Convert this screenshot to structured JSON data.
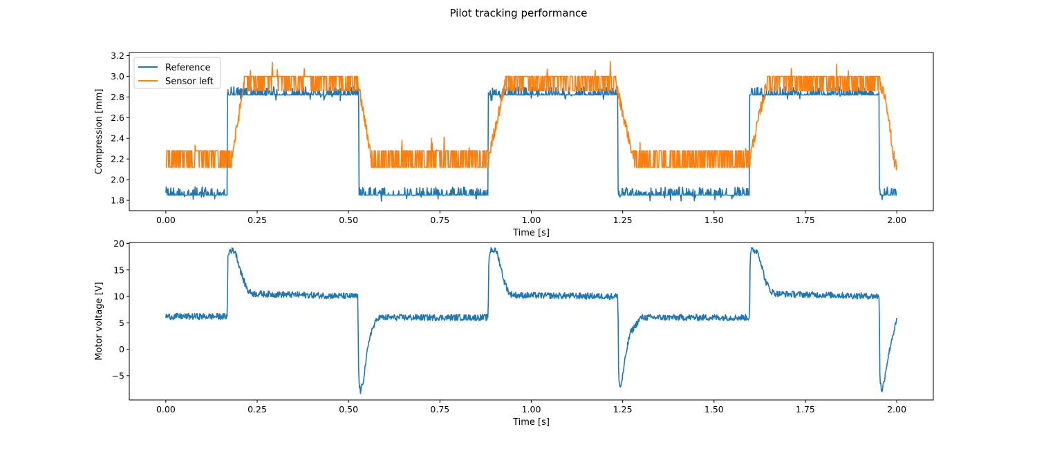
{
  "figure": {
    "title": "Pilot tracking performance"
  },
  "chart_data": [
    {
      "type": "line",
      "title": "",
      "xlabel": "Time [s]",
      "ylabel": "Compression [mm]",
      "xlim": [
        -0.1,
        2.1
      ],
      "ylim": [
        1.7,
        3.23
      ],
      "xticks": [
        0.0,
        0.25,
        0.5,
        0.75,
        1.0,
        1.25,
        1.5,
        1.75,
        2.0
      ],
      "xtick_labels": [
        "0.00",
        "0.25",
        "0.50",
        "0.75",
        "1.00",
        "1.25",
        "1.50",
        "1.75",
        "2.00"
      ],
      "yticks": [
        1.8,
        2.0,
        2.2,
        2.4,
        2.6,
        2.8,
        3.0,
        3.2
      ],
      "ytick_labels": [
        "1.8",
        "2.0",
        "2.2",
        "2.4",
        "2.6",
        "2.8",
        "3.0",
        "3.2"
      ],
      "grid": false,
      "legend": "upper-left",
      "series": [
        {
          "name": "Reference",
          "color": "#1f77b4",
          "x": [
            0.0,
            0.168,
            0.168,
            0.528,
            0.528,
            0.882,
            0.882,
            1.237,
            1.237,
            1.597,
            1.597,
            1.952,
            1.952,
            2.0
          ],
          "y": [
            1.85,
            1.85,
            2.82,
            2.82,
            1.85,
            1.85,
            2.82,
            2.82,
            1.85,
            1.85,
            2.82,
            2.82,
            1.85,
            1.85
          ],
          "noise": "upper-only, base level to +0.08, occasional dips"
        },
        {
          "name": "Sensor left",
          "color": "#ff7f0e",
          "x": [
            0.0,
            0.18,
            0.215,
            0.525,
            0.563,
            0.882,
            0.93,
            1.23,
            1.28,
            1.597,
            1.645,
            1.952,
            1.97,
            1.99,
            2.0
          ],
          "y": [
            2.2,
            2.2,
            2.95,
            2.95,
            2.2,
            2.2,
            2.95,
            2.95,
            2.2,
            2.2,
            2.95,
            2.95,
            2.8,
            2.25,
            2.12
          ],
          "noise": "quantized toggling between 2.12/2.28 on low plateaus and 2.86/3.0 on high plateaus, spikes up to 3.17"
        }
      ]
    },
    {
      "type": "line",
      "title": "",
      "xlabel": "Time [s]",
      "ylabel": "Motor voltage [V]",
      "xlim": [
        -0.1,
        2.1
      ],
      "ylim": [
        -9.6,
        20.2
      ],
      "xticks": [
        0.0,
        0.25,
        0.5,
        0.75,
        1.0,
        1.25,
        1.5,
        1.75,
        2.0
      ],
      "xtick_labels": [
        "0.00",
        "0.25",
        "0.50",
        "0.75",
        "1.00",
        "1.25",
        "1.50",
        "1.75",
        "2.00"
      ],
      "yticks": [
        -5,
        0,
        5,
        10,
        15,
        20
      ],
      "ytick_labels": [
        "−5",
        "0",
        "5",
        "10",
        "15",
        "20"
      ],
      "grid": false,
      "series": [
        {
          "color": "#1f77b4",
          "x": [
            0.0,
            0.168,
            0.17,
            0.175,
            0.19,
            0.2,
            0.21,
            0.225,
            0.24,
            0.525,
            0.528,
            0.533,
            0.54,
            0.55,
            0.56,
            0.58,
            0.882,
            0.884,
            0.89,
            0.905,
            0.915,
            0.925,
            0.94,
            0.96,
            1.237,
            1.239,
            1.244,
            1.25,
            1.26,
            1.27,
            1.3,
            1.597,
            1.599,
            1.603,
            1.62,
            1.63,
            1.64,
            1.655,
            1.67,
            1.952,
            1.954,
            1.96,
            1.965,
            1.975,
            1.985,
            2.0
          ],
          "y": [
            6.2,
            6.2,
            17.5,
            18.8,
            18.5,
            16,
            13.5,
            11,
            10.5,
            10,
            -6,
            -8.2,
            -6,
            -1,
            3,
            6,
            6,
            17.5,
            18.9,
            18.5,
            16,
            13,
            10.5,
            10.2,
            10,
            -5.5,
            -7.4,
            -5,
            -0.5,
            3,
            6,
            6,
            17.5,
            18.8,
            18.5,
            16,
            13,
            11,
            10.5,
            10,
            -6,
            -8.1,
            -6,
            -2,
            1.5,
            5.5
          ],
          "noise": "about ±0.6 V on plateaus"
        }
      ]
    }
  ]
}
